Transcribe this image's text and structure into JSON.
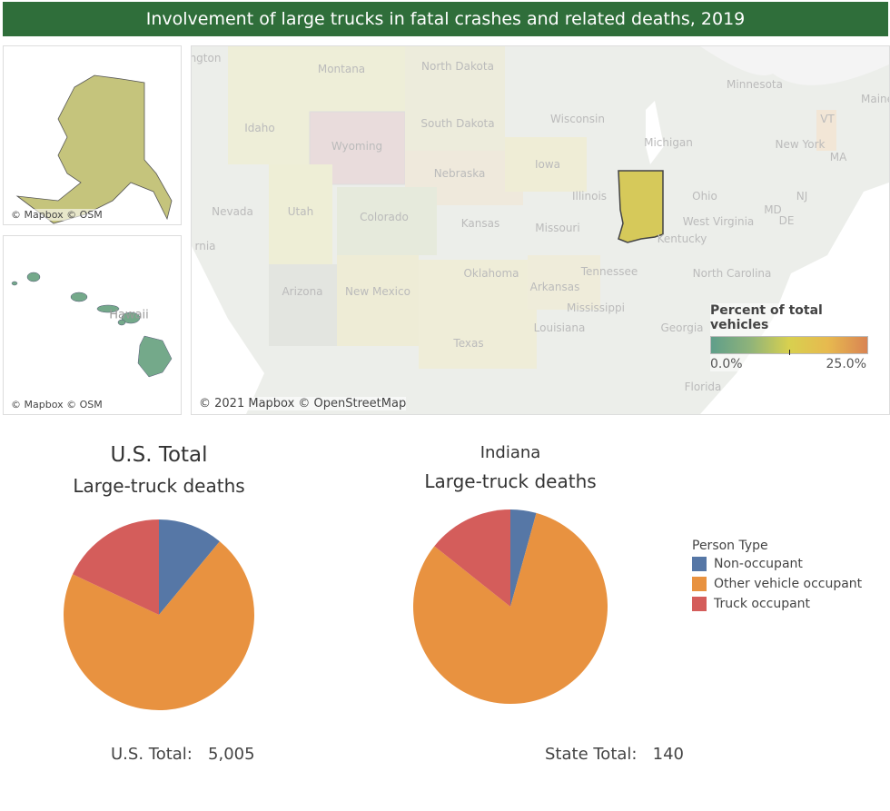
{
  "title": "Involvement of large trucks in fatal crashes and related deaths, 2019",
  "map": {
    "alaska_credit": "© Mapbox © OSM",
    "hawaii_credit": "© Mapbox © OSM",
    "hawaii_label": "Hawaii",
    "main_credit": "© 2021 Mapbox © OpenStreetMap",
    "highlighted_state": "Indiana",
    "highlight_color": "#d6c95a",
    "state_labels": [
      "ngton",
      "Montana",
      "North Dakota",
      "Minnesota",
      "Idaho",
      "Wyoming",
      "South Dakota",
      "Wisconsin",
      "Michigan",
      "New York",
      "Maine",
      "VT",
      "MA",
      "Nebraska",
      "Iowa",
      "Illinois",
      "Ohio",
      "Nevada",
      "Utah",
      "Colorado",
      "Kansas",
      "Missouri",
      "West Virginia",
      "Kentucky",
      "rnia",
      "Arizona",
      "New Mexico",
      "Oklahoma",
      "Arkansas",
      "Tennessee",
      "North Carolina",
      "Mississippi",
      "Georgia",
      "Texas",
      "Louisiana",
      "Florida",
      "NJ",
      "DE",
      "MD"
    ],
    "color_legend": {
      "title": "Percent of total vehicles",
      "min_label": "0.0%",
      "max_label": "25.0%",
      "range": [
        0,
        25
      ],
      "colors": [
        "#5f9e8a",
        "#d8d04f",
        "#d98453"
      ]
    }
  },
  "chart_data": [
    {
      "type": "pie",
      "title": "U.S. Total",
      "subtitle": "Large-truck deaths",
      "categories": [
        "Non-occupant",
        "Other vehicle occupant",
        "Truck occupant"
      ],
      "values": [
        11,
        71,
        18
      ],
      "unit": "percent (estimated)",
      "total_label": "U.S. Total:",
      "total_value": "5,005"
    },
    {
      "type": "pie",
      "title": "Indiana",
      "subtitle": "Large-truck deaths",
      "categories": [
        "Non-occupant",
        "Other vehicle occupant",
        "Truck occupant"
      ],
      "values": [
        4.3,
        81.4,
        14.3
      ],
      "unit": "percent (estimated)",
      "total_label": "State Total:",
      "total_value": "140"
    }
  ],
  "legend": {
    "title": "Person Type",
    "items": [
      {
        "label": "Non-occupant",
        "color": "#4e79a7"
      },
      {
        "label": "Other vehicle occupant",
        "color": "#f28e2b"
      },
      {
        "label": "Truck occupant",
        "color": "#e15759"
      }
    ]
  },
  "pie_colors": [
    "#5677a6",
    "#e89240",
    "#d45d5b"
  ]
}
